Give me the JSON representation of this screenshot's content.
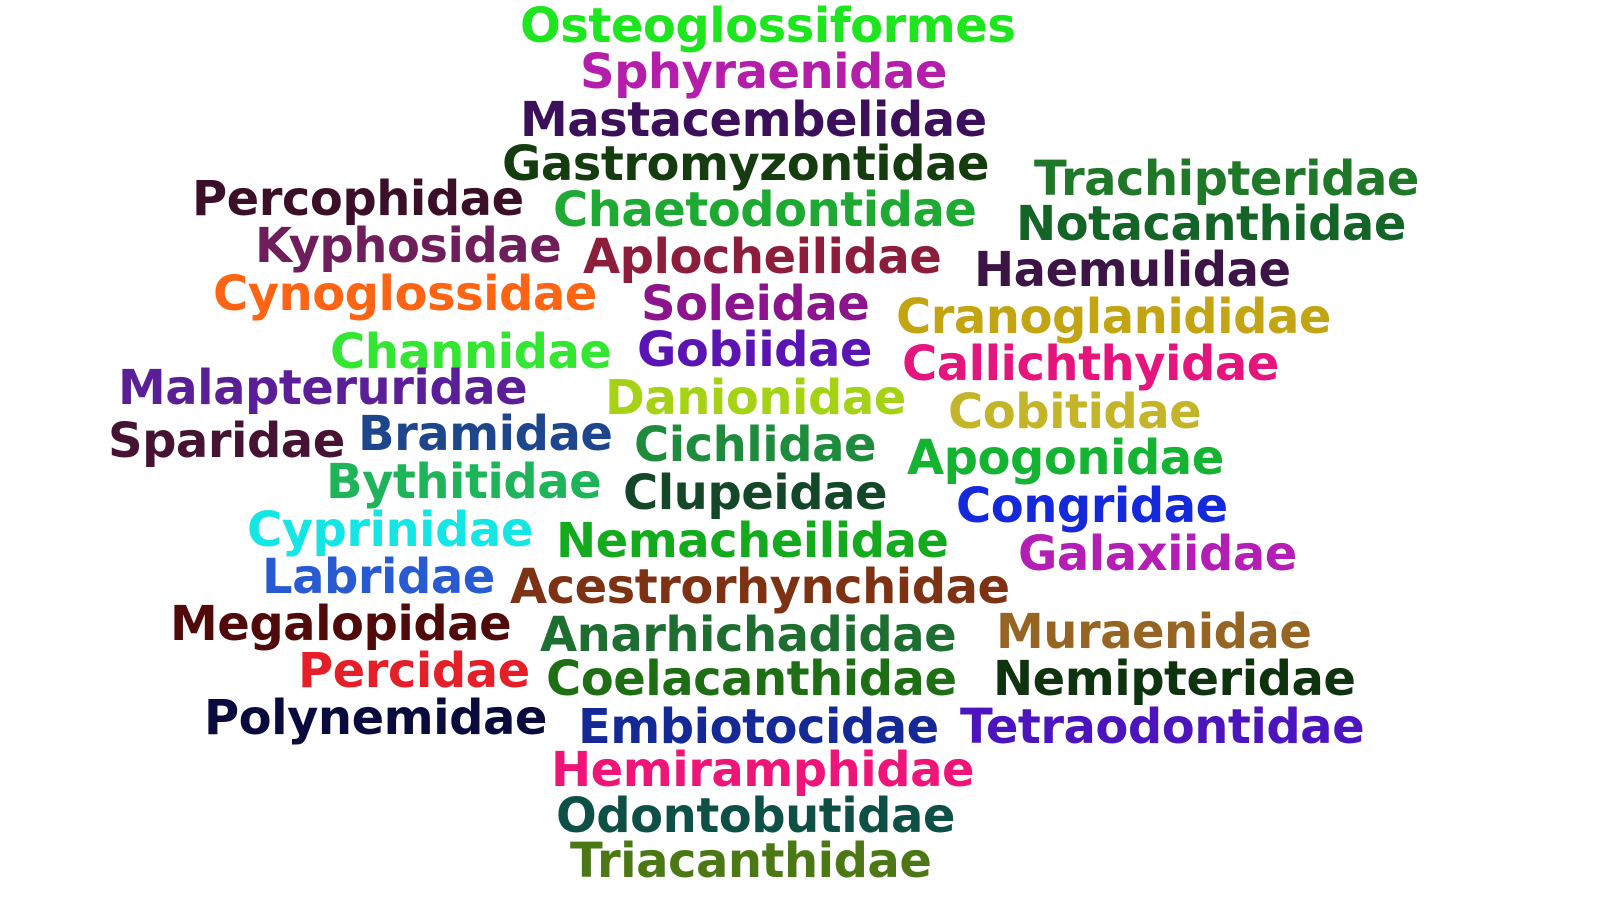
{
  "words": [
    {
      "text": "Osteoglossiformes",
      "color": "#1ee61e"
    },
    {
      "text": "Sphyraenidae",
      "color": "#b41eaa"
    },
    {
      "text": "Mastacembelidae",
      "color": "#3c0f5a"
    },
    {
      "text": "Gastromyzontidae",
      "color": "#143c0f"
    },
    {
      "text": "Trachipteridae",
      "color": "#1e7828"
    },
    {
      "text": "Percophidae",
      "color": "#3c0f28"
    },
    {
      "text": "Chaetodontidae",
      "color": "#1eaa32"
    },
    {
      "text": "Notacanthidae",
      "color": "#146428"
    },
    {
      "text": "Kyphosidae",
      "color": "#6e1e5a"
    },
    {
      "text": "Aplocheilidae",
      "color": "#8c1e3c"
    },
    {
      "text": "Haemulidae",
      "color": "#3c1446"
    },
    {
      "text": "Cynoglossidae",
      "color": "#ff6414"
    },
    {
      "text": "Soleidae",
      "color": "#8c148c"
    },
    {
      "text": "Cranoglanididae",
      "color": "#c3a514"
    },
    {
      "text": "Channidae",
      "color": "#32e632"
    },
    {
      "text": "Gobiidae",
      "color": "#5a14b4"
    },
    {
      "text": "Callichthyidae",
      "color": "#e6147d"
    },
    {
      "text": "Malapteruridae",
      "color": "#5a1e96"
    },
    {
      "text": "Danionidae",
      "color": "#a5d214"
    },
    {
      "text": "Cobitidae",
      "color": "#c3b428"
    },
    {
      "text": "Sparidae",
      "color": "#461432"
    },
    {
      "text": "Bramidae",
      "color": "#1e468c"
    },
    {
      "text": "Cichlidae",
      "color": "#1e8c3c"
    },
    {
      "text": "Apogonidae",
      "color": "#14b432"
    },
    {
      "text": "Bythitidae",
      "color": "#1eb45a"
    },
    {
      "text": "Clupeidae",
      "color": "#144628"
    },
    {
      "text": "Congridae",
      "color": "#1428dc"
    },
    {
      "text": "Cyprinidae",
      "color": "#14e6e6"
    },
    {
      "text": "Nemacheilidae",
      "color": "#14aa1e"
    },
    {
      "text": "Galaxiidae",
      "color": "#b41eb4"
    },
    {
      "text": "Labridae",
      "color": "#285ad2"
    },
    {
      "text": "Acestrorhynchidae",
      "color": "#7d3214"
    },
    {
      "text": "Megalopidae",
      "color": "#500a0a"
    },
    {
      "text": "Anarhichadidae",
      "color": "#1e6e32"
    },
    {
      "text": "Muraenidae",
      "color": "#966423"
    },
    {
      "text": "Percidae",
      "color": "#e61e28"
    },
    {
      "text": "Coelacanthidae",
      "color": "#1e6e14"
    },
    {
      "text": "Nemipteridae",
      "color": "#0f320f"
    },
    {
      "text": "Polynemidae",
      "color": "#0a0a3c"
    },
    {
      "text": "Embiotocidae",
      "color": "#142896"
    },
    {
      "text": "Tetraodontidae",
      "color": "#4b14be"
    },
    {
      "text": "Hemiramphidae",
      "color": "#f01478"
    },
    {
      "text": "Odontobutidae",
      "color": "#0f5046"
    },
    {
      "text": "Triacanthidae",
      "color": "#4b7814"
    }
  ]
}
